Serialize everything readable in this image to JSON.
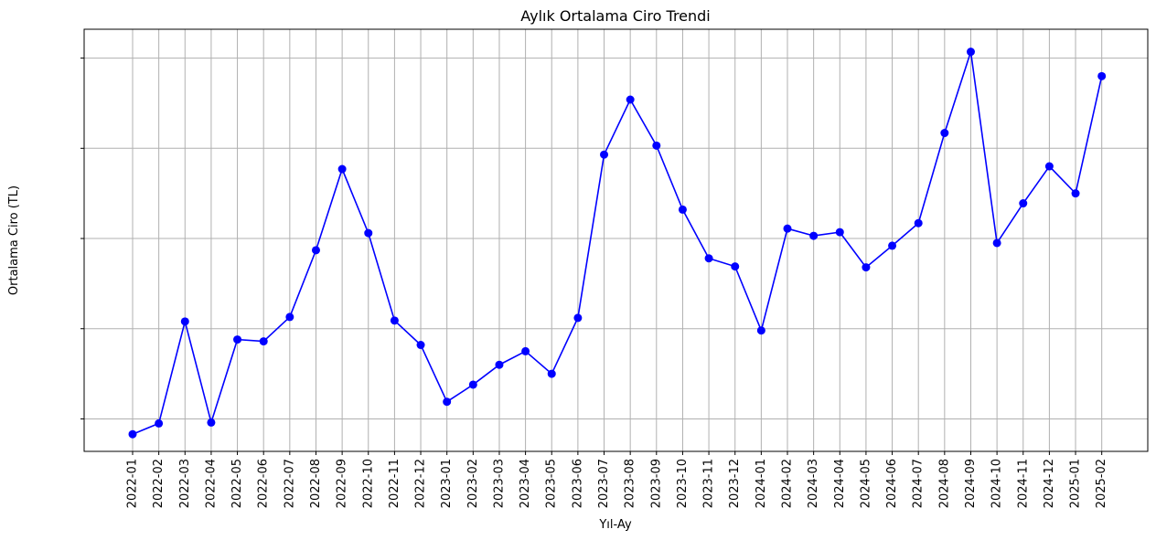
{
  "chart_data": {
    "type": "line",
    "title": "Aylık Ortalama Ciro Trendi",
    "xlabel": "Yıl-Ay",
    "ylabel": "Ortalama Ciro (TL)",
    "y_tick_labels_visible": false,
    "y_ticks": [
      1,
      2,
      3,
      4,
      5
    ],
    "ylim": [
      0.64,
      5.32
    ],
    "grid": true,
    "line_color": "#0000ff",
    "marker": "circle",
    "categories": [
      "2022-01",
      "2022-02",
      "2022-03",
      "2022-04",
      "2022-05",
      "2022-06",
      "2022-07",
      "2022-08",
      "2022-09",
      "2022-10",
      "2022-11",
      "2022-12",
      "2023-01",
      "2023-02",
      "2023-03",
      "2023-04",
      "2023-05",
      "2023-06",
      "2023-07",
      "2023-08",
      "2023-09",
      "2023-10",
      "2023-11",
      "2023-12",
      "2024-01",
      "2024-02",
      "2024-03",
      "2024-04",
      "2024-05",
      "2024-06",
      "2024-07",
      "2024-08",
      "2024-09",
      "2024-10",
      "2024-11",
      "2024-12",
      "2025-01",
      "2025-02"
    ],
    "series": [
      {
        "values": [
          0.83,
          0.95,
          2.08,
          0.96,
          1.88,
          1.86,
          2.13,
          2.87,
          3.77,
          3.06,
          2.09,
          1.82,
          1.19,
          1.38,
          1.6,
          1.75,
          1.5,
          2.12,
          3.93,
          4.54,
          4.03,
          3.32,
          2.78,
          2.69,
          1.98,
          3.11,
          3.03,
          3.07,
          2.68,
          2.92,
          3.17,
          4.17,
          5.07,
          2.95,
          3.39,
          3.8,
          3.5,
          4.8
        ]
      }
    ]
  }
}
